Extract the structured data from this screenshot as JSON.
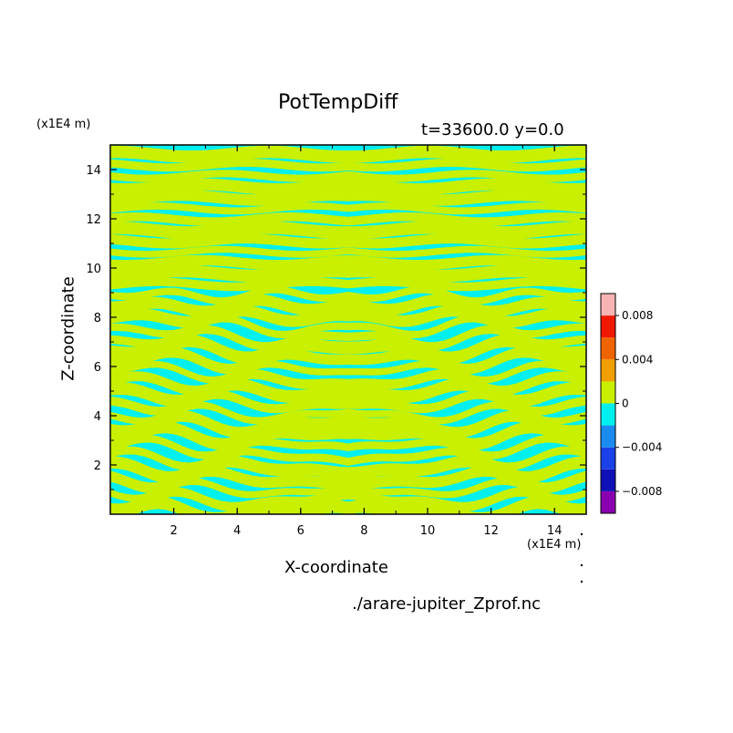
{
  "header": {
    "title": "PotTempDiff",
    "subtitle": "t=33600.0 y=0.0",
    "footer": "./arare-jupiter_Zprof.nc"
  },
  "chart_data": {
    "type": "heatmap",
    "title": "PotTempDiff",
    "xlabel": "X-coordinate",
    "ylabel": "Z-coordinate",
    "x_unit": "(x1E4 m)",
    "y_unit": "(x1E4 m)",
    "xlim": [
      0,
      15
    ],
    "ylim": [
      0,
      15
    ],
    "xticks": [
      "2",
      "4",
      "6",
      "8",
      "10",
      "12",
      "14"
    ],
    "yticks": [
      "2",
      "4",
      "6",
      "8",
      "10",
      "12",
      "14"
    ],
    "colorbar": {
      "levels": [
        -0.01,
        -0.008,
        -0.006,
        -0.004,
        -0.002,
        0,
        0.002,
        0.004,
        0.006,
        0.008,
        0.01
      ],
      "colors": [
        "#8a00b0",
        "#1010b8",
        "#1a40e8",
        "#1a8cf0",
        "#00f0f0",
        "#c8f000",
        "#f0a000",
        "#f06400",
        "#f01800",
        "#f8b4b4"
      ],
      "tick_labels": [
        "0.008",
        "0.004",
        "0",
        "−0.004",
        "−0.008"
      ],
      "tick_values": [
        0.008,
        0.004,
        0,
        -0.004,
        -0.008
      ]
    },
    "field_colors": {
      "negative": "#00f0f0",
      "positive": "#c8f000"
    },
    "note": ""
  }
}
